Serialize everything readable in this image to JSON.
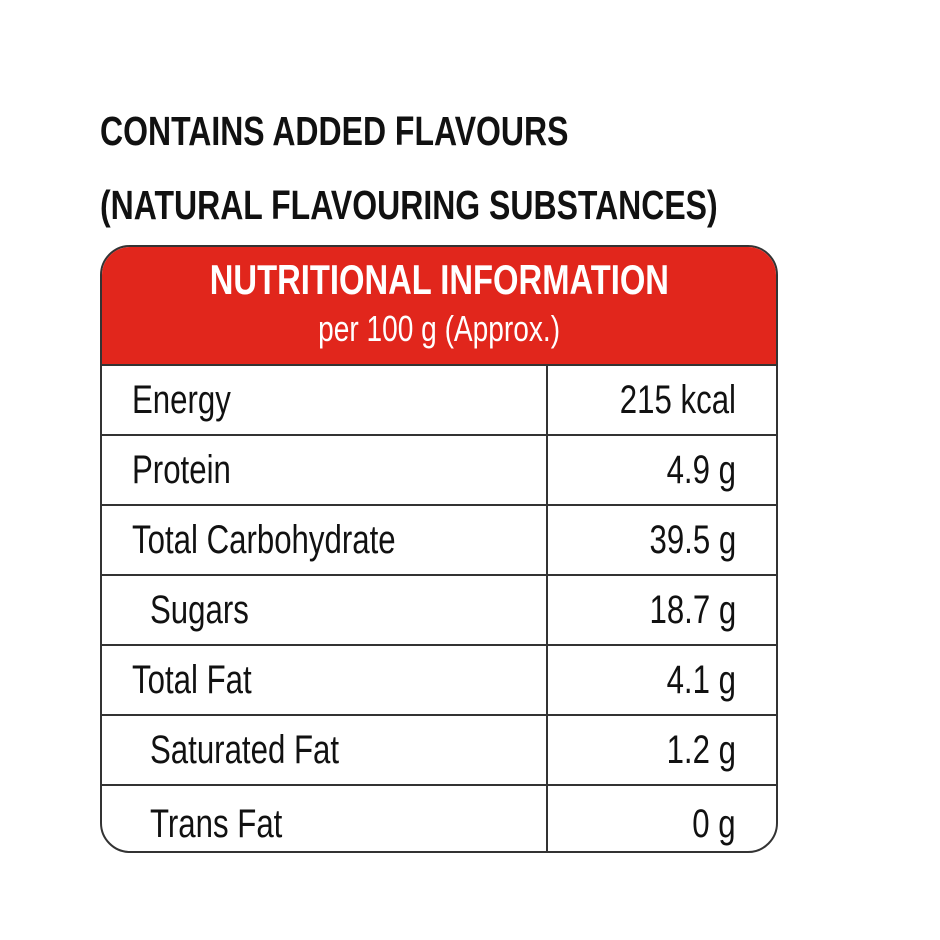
{
  "notes": [
    "CONTAINS ADDED FLAVOURS",
    "(NATURAL FLAVOURING SUBSTANCES)"
  ],
  "table": {
    "title": "NUTRITIONAL INFORMATION",
    "subtitle": "per 100 g (Approx.)",
    "rows": [
      [
        "Energy",
        "215 kcal"
      ],
      [
        "Protein",
        "4.9 g"
      ],
      [
        "Total Carbohydrate",
        "39.5 g"
      ],
      [
        "Sugars",
        "18.7 g"
      ],
      [
        "Total Fat",
        "4.1 g"
      ],
      [
        "Saturated Fat",
        "1.2 g"
      ],
      [
        "Trans Fat",
        "0 g"
      ]
    ]
  }
}
